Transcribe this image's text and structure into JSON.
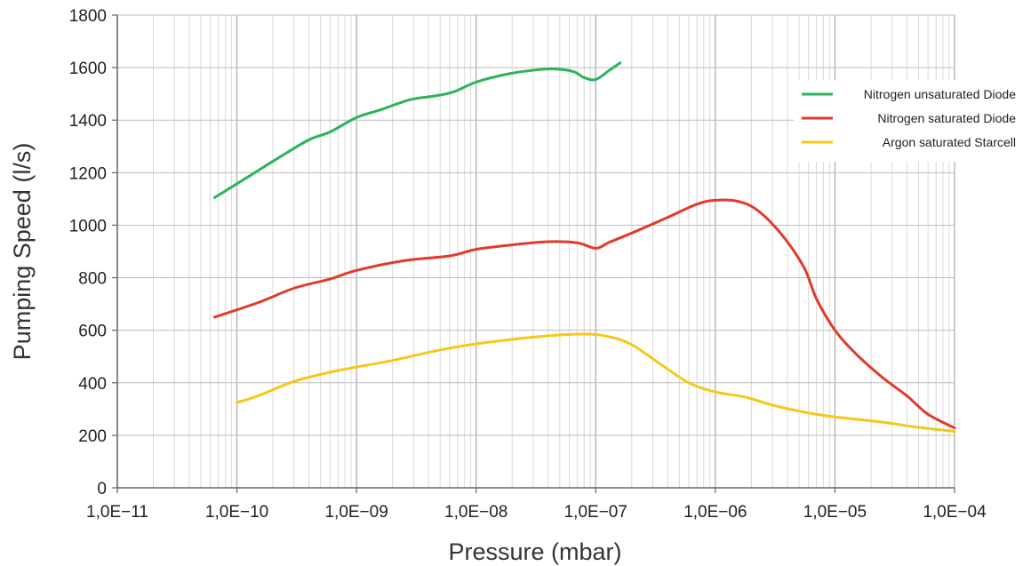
{
  "chart_data": {
    "type": "line",
    "title": "",
    "xlabel": "Pressure (mbar)",
    "ylabel": "Pumping Speed (l/s)",
    "x_scale": "log",
    "xlim": [
      1e-11,
      0.0001
    ],
    "ylim": [
      0,
      1800
    ],
    "x_ticks": [
      {
        "value": 1e-11,
        "label": "1,0E−11"
      },
      {
        "value": 1e-10,
        "label": "1,0E−10"
      },
      {
        "value": 1e-09,
        "label": "1,0E−09"
      },
      {
        "value": 1e-08,
        "label": "1,0E−08"
      },
      {
        "value": 1e-07,
        "label": "1,0E−07"
      },
      {
        "value": 1e-06,
        "label": "1,0E−06"
      },
      {
        "value": 1e-05,
        "label": "1,0E−05"
      },
      {
        "value": 0.0001,
        "label": "1,0E−04"
      }
    ],
    "y_ticks": [
      0,
      200,
      400,
      600,
      800,
      1000,
      1200,
      1400,
      1600,
      1800
    ],
    "grid": true,
    "legend_position": "top-right",
    "series": [
      {
        "name": "Nitrogen unsaturated Diode",
        "color": "#2bb35a",
        "points": [
          [
            6.5e-11,
            1105
          ],
          [
            1.3e-10,
            1190
          ],
          [
            2.2e-10,
            1255
          ],
          [
            4e-10,
            1325
          ],
          [
            6e-10,
            1355
          ],
          [
            1e-09,
            1410
          ],
          [
            1.6e-09,
            1440
          ],
          [
            2.8e-09,
            1478
          ],
          [
            4.5e-09,
            1492
          ],
          [
            6.5e-09,
            1508
          ],
          [
            1e-08,
            1545
          ],
          [
            1.8e-08,
            1575
          ],
          [
            3e-08,
            1590
          ],
          [
            4.5e-08,
            1595
          ],
          [
            6.5e-08,
            1585
          ],
          [
            8e-08,
            1562
          ],
          [
            1e-07,
            1555
          ],
          [
            1.3e-07,
            1590
          ],
          [
            1.6e-07,
            1618
          ]
        ]
      },
      {
        "name": "Nitrogen saturated Diode",
        "color": "#e23a2a",
        "points": [
          [
            6.5e-11,
            650
          ],
          [
            1.5e-10,
            705
          ],
          [
            3e-10,
            760
          ],
          [
            6e-10,
            795
          ],
          [
            1e-09,
            828
          ],
          [
            2.5e-09,
            865
          ],
          [
            6e-09,
            883
          ],
          [
            1e-08,
            908
          ],
          [
            2e-08,
            925
          ],
          [
            4e-08,
            937
          ],
          [
            7e-08,
            933
          ],
          [
            1e-07,
            912
          ],
          [
            1.3e-07,
            935
          ],
          [
            2e-07,
            970
          ],
          [
            4e-07,
            1030
          ],
          [
            7e-07,
            1080
          ],
          [
            1e-06,
            1095
          ],
          [
            1.5e-06,
            1092
          ],
          [
            2.2e-06,
            1060
          ],
          [
            3.5e-06,
            970
          ],
          [
            5.5e-06,
            840
          ],
          [
            7e-06,
            720
          ],
          [
            1e-05,
            600
          ],
          [
            1.5e-05,
            510
          ],
          [
            2.5e-05,
            420
          ],
          [
            4e-05,
            350
          ],
          [
            6e-05,
            280
          ],
          [
            0.0001,
            228
          ]
        ]
      },
      {
        "name": "Argon saturated Starcell",
        "color": "#f5c818",
        "points": [
          [
            1e-10,
            325
          ],
          [
            1.5e-10,
            350
          ],
          [
            3e-10,
            405
          ],
          [
            6e-10,
            440
          ],
          [
            1e-09,
            460
          ],
          [
            2e-09,
            485
          ],
          [
            5e-09,
            525
          ],
          [
            1e-08,
            548
          ],
          [
            2.5e-08,
            570
          ],
          [
            5e-08,
            582
          ],
          [
            9e-08,
            585
          ],
          [
            1.3e-07,
            575
          ],
          [
            2e-07,
            545
          ],
          [
            3.5e-07,
            470
          ],
          [
            6e-07,
            400
          ],
          [
            1e-06,
            365
          ],
          [
            1.8e-06,
            345
          ],
          [
            3e-06,
            315
          ],
          [
            6e-06,
            285
          ],
          [
            1e-05,
            270
          ],
          [
            2e-05,
            255
          ],
          [
            3e-05,
            245
          ],
          [
            5e-05,
            230
          ],
          [
            0.0001,
            215
          ]
        ]
      }
    ]
  }
}
